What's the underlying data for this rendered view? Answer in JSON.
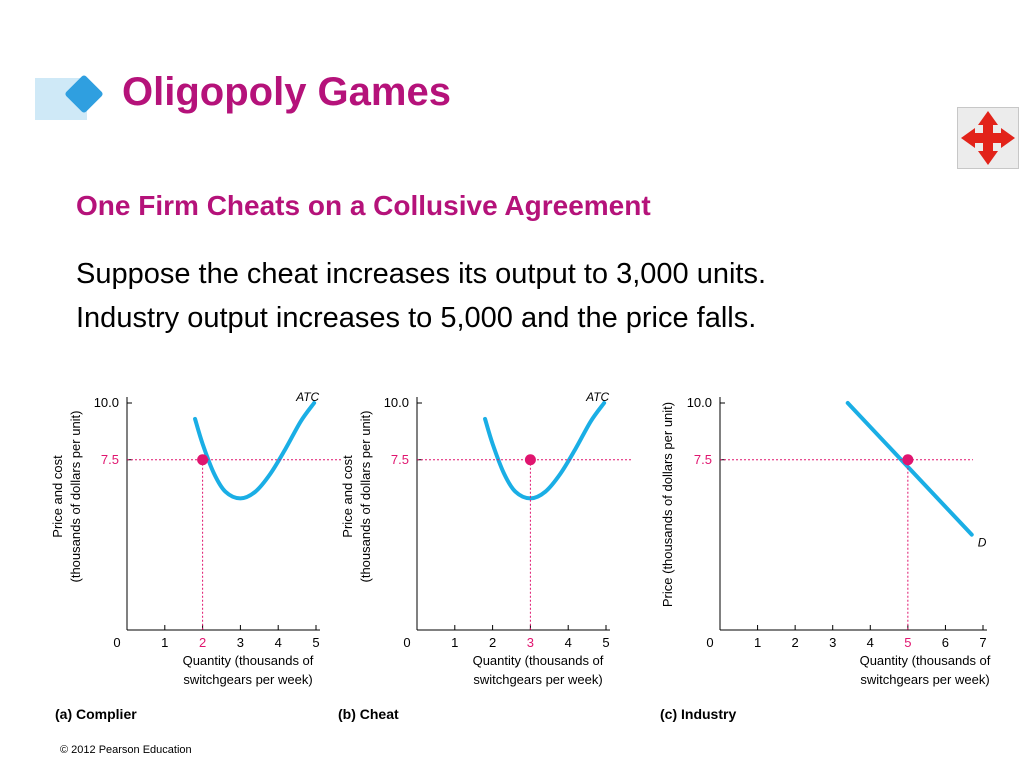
{
  "slide": {
    "title": "Oligopoly Games",
    "subtitle": "One Firm Cheats on a Collusive Agreement",
    "body": [
      "Suppose the cheat increases its output to 3,000 units.",
      "Industry output increases to 5,000 and the price falls."
    ],
    "footer": "© 2012 Pearson Education",
    "nav_icon": "four-way-arrows-icon",
    "colors": {
      "title": "#b5127a",
      "curve": "#1aaee5",
      "point": "#e0156f",
      "dotted": "#e0156f"
    }
  },
  "chart_data": [
    {
      "type": "line",
      "panel_label": "(a) Complier",
      "ylabel": "Price and cost (thousands of dollars per unit)",
      "xlabel": "Quantity (thousands of switchgears per week)",
      "xlim": [
        0,
        5
      ],
      "ylim": [
        0,
        10
      ],
      "x_ticks": [
        "0",
        "1",
        "2",
        "3",
        "4",
        "5"
      ],
      "highlight_x_tick": "2",
      "y_ticks": [
        "7.5",
        "10.0"
      ],
      "series": [
        {
          "name": "ATC",
          "x": [
            1.8,
            2.0,
            2.3,
            2.6,
            3.0,
            3.4,
            3.8,
            4.2,
            4.6,
            4.95
          ],
          "y": [
            9.3,
            8.2,
            6.9,
            6.1,
            5.8,
            6.1,
            6.9,
            8.0,
            9.2,
            10.0
          ]
        }
      ],
      "point": {
        "x": 2,
        "y": 7.5
      }
    },
    {
      "type": "line",
      "panel_label": "(b) Cheat",
      "ylabel": "Price and cost (thousands of dollars per unit)",
      "xlabel": "Quantity (thousands of switchgears per week)",
      "xlim": [
        0,
        5
      ],
      "ylim": [
        0,
        10
      ],
      "x_ticks": [
        "0",
        "1",
        "2",
        "3",
        "4",
        "5"
      ],
      "highlight_x_tick": "3",
      "y_ticks": [
        "7.5",
        "10.0"
      ],
      "series": [
        {
          "name": "ATC",
          "x": [
            1.8,
            2.0,
            2.3,
            2.6,
            3.0,
            3.4,
            3.8,
            4.2,
            4.6,
            4.95
          ],
          "y": [
            9.3,
            8.2,
            6.9,
            6.1,
            5.8,
            6.1,
            6.9,
            8.0,
            9.2,
            10.0
          ]
        }
      ],
      "point": {
        "x": 3,
        "y": 7.5
      }
    },
    {
      "type": "line",
      "panel_label": "(c) Industry",
      "ylabel": "Price (thousands of dollars per unit)",
      "xlabel": "Quantity (thousands of switchgears per week)",
      "xlim": [
        0,
        7
      ],
      "ylim": [
        0,
        10
      ],
      "x_ticks": [
        "0",
        "1",
        "2",
        "3",
        "4",
        "5",
        "6",
        "7"
      ],
      "highlight_x_tick": "5",
      "y_ticks": [
        "7.5",
        "10.0"
      ],
      "series": [
        {
          "name": "D",
          "x": [
            3.4,
            6.7
          ],
          "y": [
            10.0,
            4.2
          ]
        }
      ],
      "point": {
        "x": 5,
        "y": 7.5
      }
    }
  ]
}
